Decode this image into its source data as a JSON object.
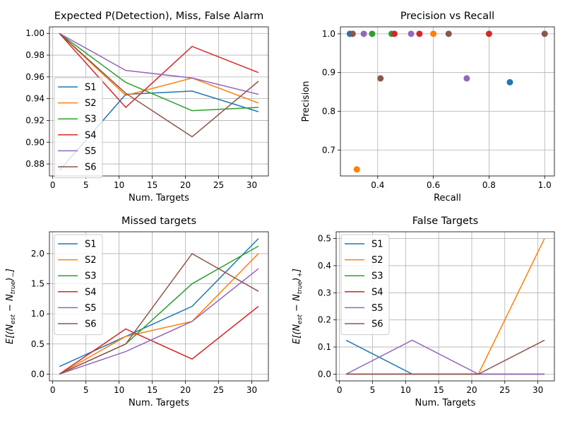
{
  "colors": {
    "S1": "#1f77b4",
    "S2": "#ff7f0e",
    "S3": "#2ca02c",
    "S4": "#d62728",
    "S5": "#9467bd",
    "S6": "#8c564b",
    "grid": "#b0b0b0",
    "legend_edge": "#cccccc"
  },
  "chart_data": [
    {
      "type": "line",
      "title": "Expected P(Detection), Miss, False Alarm",
      "xlabel": "Num. Targets",
      "ylabel": "",
      "xlim": [
        -0.5,
        32.5
      ],
      "ylim": [
        0.869,
        1.006
      ],
      "xticks": [
        0,
        5,
        10,
        15,
        20,
        25,
        30
      ],
      "xtick_labels": [
        "0",
        "5",
        "10",
        "15",
        "20",
        "25",
        "30"
      ],
      "yticks": [
        0.88,
        0.9,
        0.92,
        0.94,
        0.96,
        0.98,
        1.0
      ],
      "ytick_labels": [
        "0.88",
        "0.90",
        "0.92",
        "0.94",
        "0.96",
        "0.98",
        "1.00"
      ],
      "grid": true,
      "legend": "center-left",
      "x": [
        1,
        11,
        21,
        31
      ],
      "series": [
        {
          "name": "S1",
          "values": [
            0.874,
            0.944,
            0.947,
            0.928
          ]
        },
        {
          "name": "S2",
          "values": [
            1.0,
            0.943,
            0.959,
            0.936
          ]
        },
        {
          "name": "S3",
          "values": [
            1.0,
            0.955,
            0.929,
            0.932
          ]
        },
        {
          "name": "S4",
          "values": [
            1.0,
            0.932,
            0.988,
            0.964
          ]
        },
        {
          "name": "S5",
          "values": [
            1.0,
            0.966,
            0.959,
            0.944
          ]
        },
        {
          "name": "S6",
          "values": [
            1.0,
            0.945,
            0.905,
            0.956
          ]
        }
      ]
    },
    {
      "type": "scatter",
      "title": "Precision vs Recall",
      "xlabel": "Recall",
      "ylabel": "Precision",
      "xlim": [
        0.266,
        1.035
      ],
      "ylim": [
        0.633,
        1.018
      ],
      "xticks": [
        0.4,
        0.6,
        0.8,
        1.0
      ],
      "xtick_labels": [
        "0.4",
        "0.6",
        "0.8",
        "1.0"
      ],
      "yticks": [
        0.7,
        0.8,
        0.9,
        1.0
      ],
      "ytick_labels": [
        "0.7",
        "0.8",
        "0.9",
        "1.0"
      ],
      "grid": true,
      "series": [
        {
          "name": "S1",
          "points": [
            [
              0.3,
              1.0
            ],
            [
              0.875,
              0.875
            ]
          ]
        },
        {
          "name": "S2",
          "points": [
            [
              0.325,
              0.65
            ],
            [
              0.6,
              1.0
            ]
          ]
        },
        {
          "name": "S3",
          "points": [
            [
              0.38,
              1.0
            ],
            [
              0.45,
              1.0
            ]
          ]
        },
        {
          "name": "S4",
          "points": [
            [
              0.46,
              1.0
            ],
            [
              0.55,
              1.0
            ],
            [
              0.8,
              1.0
            ]
          ]
        },
        {
          "name": "S5",
          "points": [
            [
              0.35,
              1.0
            ],
            [
              0.52,
              1.0
            ],
            [
              0.72,
              0.885
            ]
          ]
        },
        {
          "name": "S6",
          "points": [
            [
              0.31,
              1.0
            ],
            [
              0.41,
              0.885
            ],
            [
              0.655,
              1.0
            ],
            [
              1.0,
              1.0
            ]
          ]
        }
      ]
    },
    {
      "type": "line",
      "title": "Missed targets",
      "xlabel": "Num. Targets",
      "ylabel": "E[(N_est − N_true)_−]",
      "xlim": [
        -0.5,
        32.5
      ],
      "ylim": [
        -0.113,
        2.363
      ],
      "xticks": [
        0,
        5,
        10,
        15,
        20,
        25,
        30
      ],
      "xtick_labels": [
        "0",
        "5",
        "10",
        "15",
        "20",
        "25",
        "30"
      ],
      "yticks": [
        0.0,
        0.5,
        1.0,
        1.5,
        2.0
      ],
      "ytick_labels": [
        "0.0",
        "0.5",
        "1.0",
        "1.5",
        "2.0"
      ],
      "grid": true,
      "legend": "upper-left",
      "x": [
        1,
        11,
        21,
        31
      ],
      "series": [
        {
          "name": "S1",
          "values": [
            0.125,
            0.625,
            1.125,
            2.25
          ]
        },
        {
          "name": "S2",
          "values": [
            0.0,
            0.625,
            0.875,
            2.0
          ]
        },
        {
          "name": "S3",
          "values": [
            0.0,
            0.5,
            1.5,
            2.125
          ]
        },
        {
          "name": "S4",
          "values": [
            0.0,
            0.75,
            0.25,
            1.125
          ]
        },
        {
          "name": "S5",
          "values": [
            0.0,
            0.375,
            0.875,
            1.75
          ]
        },
        {
          "name": "S6",
          "values": [
            0.0,
            0.5,
            2.0,
            1.375
          ]
        }
      ]
    },
    {
      "type": "line",
      "title": "False Targets",
      "xlabel": "Num. Targets",
      "ylabel": "E[(N_est − N_true)_+]",
      "xlim": [
        -0.5,
        32.5
      ],
      "ylim": [
        -0.025,
        0.525
      ],
      "xticks": [
        0,
        5,
        10,
        15,
        20,
        25,
        30
      ],
      "xtick_labels": [
        "0",
        "5",
        "10",
        "15",
        "20",
        "25",
        "30"
      ],
      "yticks": [
        0.0,
        0.1,
        0.2,
        0.3,
        0.4,
        0.5
      ],
      "ytick_labels": [
        "0.0",
        "0.1",
        "0.2",
        "0.3",
        "0.4",
        "0.5"
      ],
      "grid": true,
      "legend": "upper-left",
      "x": [
        1,
        11,
        21,
        31
      ],
      "series": [
        {
          "name": "S1",
          "values": [
            0.125,
            0.0,
            0.0,
            0.0
          ]
        },
        {
          "name": "S2",
          "values": [
            0.0,
            0.0,
            0.0,
            0.5
          ]
        },
        {
          "name": "S3",
          "values": [
            0.0,
            0.0,
            0.0,
            0.0
          ]
        },
        {
          "name": "S4",
          "values": [
            0.0,
            0.0,
            0.0,
            0.0
          ]
        },
        {
          "name": "S5",
          "values": [
            0.0,
            0.125,
            0.0,
            0.0
          ]
        },
        {
          "name": "S6",
          "values": [
            0.0,
            0.0,
            0.0,
            0.125
          ]
        }
      ]
    }
  ]
}
